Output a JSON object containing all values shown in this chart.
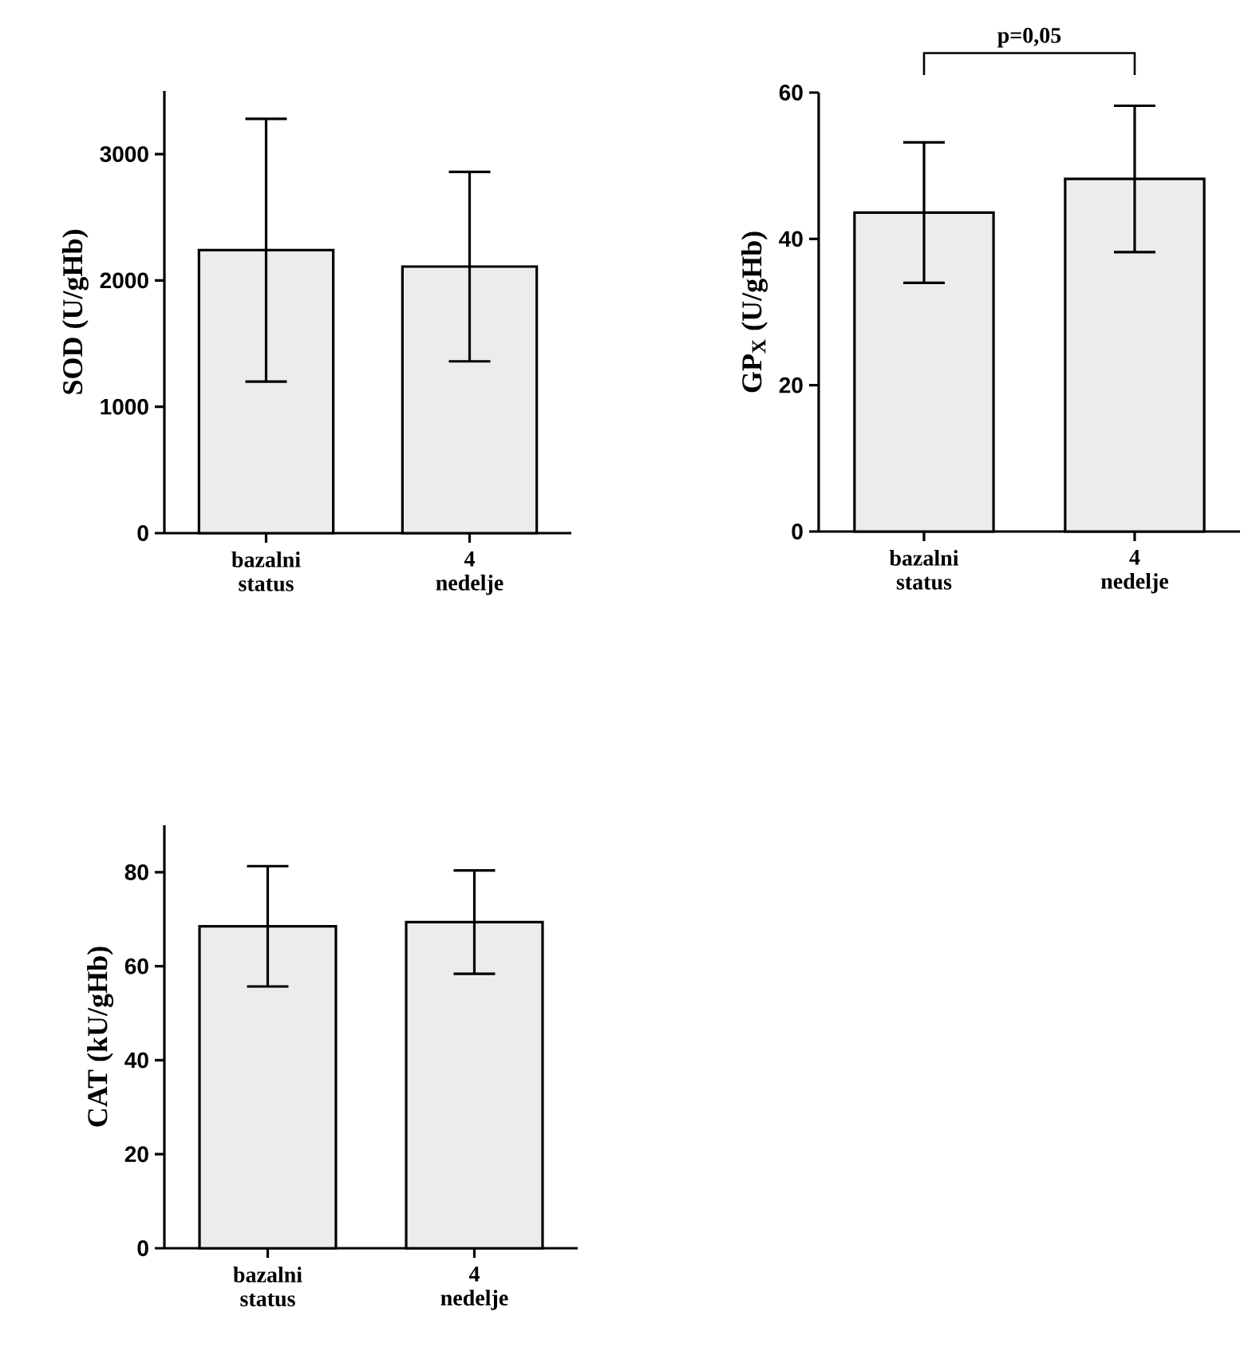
{
  "chart_data": [
    {
      "type": "bar",
      "ylabel": "SOD (U/gHb)",
      "categories": [
        "bazalni status",
        "4 nedelje"
      ],
      "values": [
        2240,
        2110
      ],
      "errors": [
        1040,
        750
      ],
      "color": "#ececec",
      "ylim": [
        0,
        3500
      ],
      "yticks": [
        0,
        1000,
        2000,
        3000
      ]
    },
    {
      "type": "bar",
      "ylabel": "GP$_{X}$ (U/gHb)",
      "categories": [
        "bazalni status",
        "4 nedelje"
      ],
      "values": [
        43.6,
        48.2
      ],
      "errors": [
        9.6,
        10.0
      ],
      "color": "#ececec",
      "ylim": [
        0,
        60
      ],
      "yticks": [
        0,
        20,
        40,
        60
      ],
      "annotations": [
        "p=0,05"
      ]
    },
    {
      "type": "bar",
      "ylabel": "CAT (kU/gHb)",
      "categories": [
        "bazalni status",
        "4 nedelje"
      ],
      "values": [
        68.5,
        69.4
      ],
      "errors": [
        12.8,
        11.0
      ],
      "color": "#ececec",
      "ylim": [
        0,
        90
      ],
      "yticks": [
        0,
        20,
        40,
        60,
        80
      ]
    }
  ]
}
